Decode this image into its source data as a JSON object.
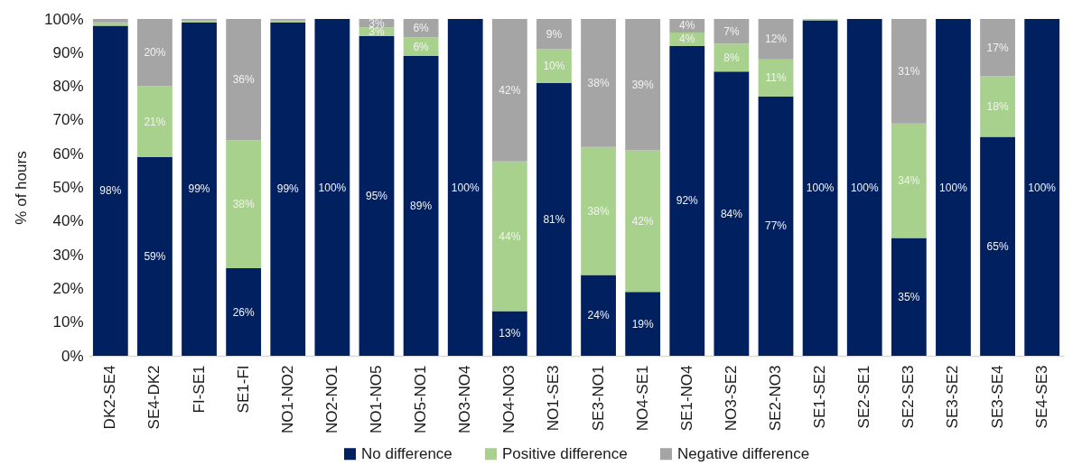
{
  "chart_data": {
    "type": "bar",
    "stacked": true,
    "ylabel": "% of hours",
    "categories": [
      "DK2-SE4",
      "SE4-DK2",
      "FI-SE1",
      "SE1-FI",
      "NO1-NO2",
      "NO2-NO1",
      "NO1-NO5",
      "NO5-NO1",
      "NO3-NO4",
      "NO4-NO3",
      "NO1-SE3",
      "SE3-NO1",
      "NO4-SE1",
      "SE1-NO4",
      "NO3-SE2",
      "SE2-NO3",
      "SE1-SE2",
      "SE2-SE1",
      "SE2-SE3",
      "SE3-SE2",
      "SE3-SE4",
      "SE4-SE3"
    ],
    "ylim": [
      0,
      100
    ],
    "yticks": [
      {
        "value": 0,
        "label": "0%"
      },
      {
        "value": 10,
        "label": "10%"
      },
      {
        "value": 20,
        "label": "20%"
      },
      {
        "value": 30,
        "label": "30%"
      },
      {
        "value": 40,
        "label": "40%"
      },
      {
        "value": 50,
        "label": "50%"
      },
      {
        "value": 60,
        "label": "60%"
      },
      {
        "value": 70,
        "label": "70%"
      },
      {
        "value": 80,
        "label": "80%"
      },
      {
        "value": 90,
        "label": "90%"
      },
      {
        "value": 100,
        "label": "100%"
      }
    ],
    "legend": "bottom",
    "series": [
      {
        "name": "No difference",
        "color": "#002060",
        "values": [
          98,
          59,
          99,
          26,
          99,
          100,
          95,
          89,
          100,
          13.3,
          81,
          24,
          19,
          92,
          84.4,
          77,
          99.6,
          100,
          35,
          100,
          65,
          100
        ],
        "value_labels": [
          "98%",
          "59%",
          "99%",
          "26%",
          "99%",
          "100%",
          "95%",
          "89%",
          "100%",
          "13%",
          "81%",
          "24%",
          "19%",
          "92%",
          "84%",
          "77%",
          "100%",
          "100%",
          "35%",
          "100%",
          "65%",
          "100%"
        ]
      },
      {
        "name": "Positive difference",
        "color": "#a9d18e",
        "values": [
          1,
          21,
          0.5,
          38,
          0.5,
          null,
          2.5,
          5.5,
          null,
          44.4,
          10,
          38,
          42,
          4,
          8.3,
          11,
          0.4,
          null,
          34,
          null,
          18,
          null
        ],
        "value_labels": [
          null,
          "21%",
          null,
          "38%",
          null,
          null,
          "3%",
          "6%",
          null,
          "44%",
          "10%",
          "38%",
          "42%",
          "4%",
          "8%",
          "11%",
          null,
          null,
          "34%",
          null,
          "18%",
          null
        ]
      },
      {
        "name": "Negative difference",
        "color": "#a5a5a5",
        "values": [
          1,
          20,
          0.5,
          36,
          0.5,
          null,
          2.5,
          5.5,
          null,
          42.3,
          9,
          38,
          39,
          4,
          7.3,
          12,
          null,
          null,
          31,
          null,
          17,
          null
        ],
        "value_labels": [
          null,
          "20%",
          null,
          "36%",
          null,
          null,
          "3%",
          "6%",
          null,
          "42%",
          "9%",
          "38%",
          "39%",
          "4%",
          "7%",
          "12%",
          null,
          null,
          "31%",
          null,
          "17%",
          null
        ]
      }
    ]
  }
}
